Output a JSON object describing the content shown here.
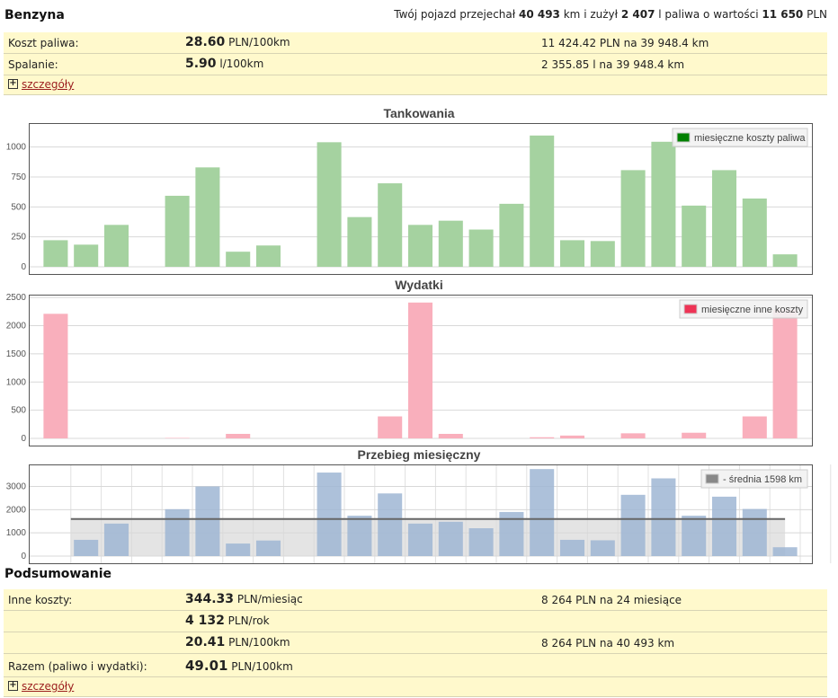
{
  "fuel": {
    "title": "Benzyna",
    "summary": {
      "prefix": "Twój pojazd przejechał ",
      "km": "40 493",
      "km_unit": " km i zużył ",
      "liters": "2 407",
      "liters_unit": " l paliwa o wartości ",
      "value": "11 650",
      "value_unit": " PLN"
    },
    "rows": [
      {
        "label": "Koszt paliwa:",
        "value": "28.60",
        "unit": " PLN/100km",
        "info": "11 424.42 PLN na 39 948.4 km"
      },
      {
        "label": "Spalanie:",
        "value": "5.90",
        "unit": " l/100km",
        "info": "2 355.85 l na 39 948.4 km"
      }
    ],
    "details_link": "szczegóły",
    "toggle_symbol": "+"
  },
  "summary": {
    "title": "Podsumowanie",
    "rows": [
      {
        "label": "Inne koszty:",
        "value": "344.33",
        "unit": " PLN/miesiąc",
        "info": "8 264 PLN na 24 miesiące"
      },
      {
        "label": "",
        "value": "4 132",
        "unit": " PLN/rok",
        "info": ""
      },
      {
        "label": "",
        "value": "20.41",
        "unit": " PLN/100km",
        "info": "8 264 PLN na 40 493 km"
      },
      {
        "label": "Razem (paliwo i wydatki):",
        "value": "49.01",
        "unit": " PLN/100km",
        "info": ""
      }
    ],
    "details_link": "szczegóły",
    "toggle_symbol": "+"
  },
  "chart_data": [
    {
      "type": "bar",
      "title": "Tankowania",
      "xlabel": "",
      "ylabel": "",
      "ylim": [
        0,
        1200
      ],
      "yticks": [
        0,
        250,
        500,
        750,
        1000
      ],
      "grid": true,
      "legend": "top-right",
      "series": [
        {
          "name": "miesięczne koszty paliwa",
          "color": "#008000",
          "bar_color": "#a5d2a0",
          "values": [
            222,
            185,
            350,
            0,
            593,
            830,
            126,
            178,
            0,
            1040,
            415,
            697,
            350,
            385,
            311,
            526,
            1096,
            222,
            215,
            807,
            1044,
            511,
            807,
            570,
            104
          ]
        }
      ]
    },
    {
      "type": "bar",
      "title": "Wydatki",
      "xlabel": "",
      "ylabel": "",
      "ylim": [
        0,
        2550
      ],
      "yticks": [
        0,
        500,
        1000,
        1500,
        2000,
        2500
      ],
      "grid": true,
      "legend": "top-right",
      "series": [
        {
          "name": "miesięczne inne koszty",
          "color": "#ee3355",
          "bar_color": "#f9afbc",
          "values": [
            2210,
            0,
            0,
            0,
            8,
            0,
            80,
            0,
            0,
            0,
            0,
            390,
            2410,
            80,
            0,
            0,
            20,
            50,
            0,
            90,
            0,
            100,
            0,
            390,
            2280
          ]
        }
      ]
    },
    {
      "type": "bar",
      "title": "Przebieg miesięczny",
      "xlabel": "",
      "ylabel": "",
      "ylim": [
        0,
        3950
      ],
      "yticks": [
        0,
        1000,
        2000,
        3000
      ],
      "grid": true,
      "legend": "top-right",
      "average": 1598,
      "series": [
        {
          "name": "- średnia 1598 km",
          "color": "#888888",
          "bar_color": "#9fb6d4",
          "values": [
            0,
            700,
            1400,
            0,
            2020,
            3000,
            540,
            670,
            0,
            3600,
            1740,
            2700,
            1400,
            1480,
            1200,
            1900,
            3750,
            700,
            680,
            2640,
            3350,
            1740,
            2560,
            2030,
            380
          ]
        }
      ]
    }
  ]
}
